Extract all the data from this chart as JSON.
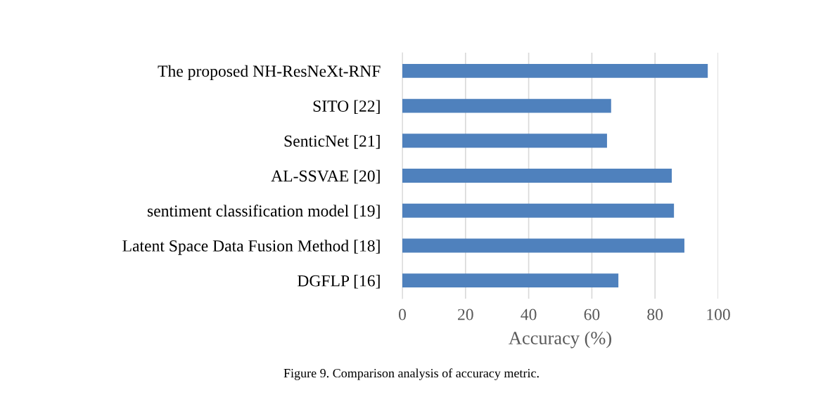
{
  "chart_data": {
    "type": "bar",
    "orientation": "horizontal",
    "categories": [
      "The proposed NH-ResNeXt-RNF",
      "SITO [22]",
      "SenticNet [21]",
      "AL-SSVAE [20]",
      "sentiment classification model [19]",
      "Latent Space Data Fusion Method [18]",
      "DGFLP [16]"
    ],
    "values": [
      96.7,
      66.1,
      64.8,
      85.3,
      86.0,
      89.3,
      68.4
    ],
    "color": "#4f81bd",
    "xlim": [
      0,
      100
    ],
    "xticks": [
      0,
      20,
      40,
      60,
      80,
      100
    ],
    "xlabel": "Accuracy (%)",
    "grid": "x",
    "annotations": [
      "Figure 9. Comparison analysis of accuracy metric."
    ]
  }
}
